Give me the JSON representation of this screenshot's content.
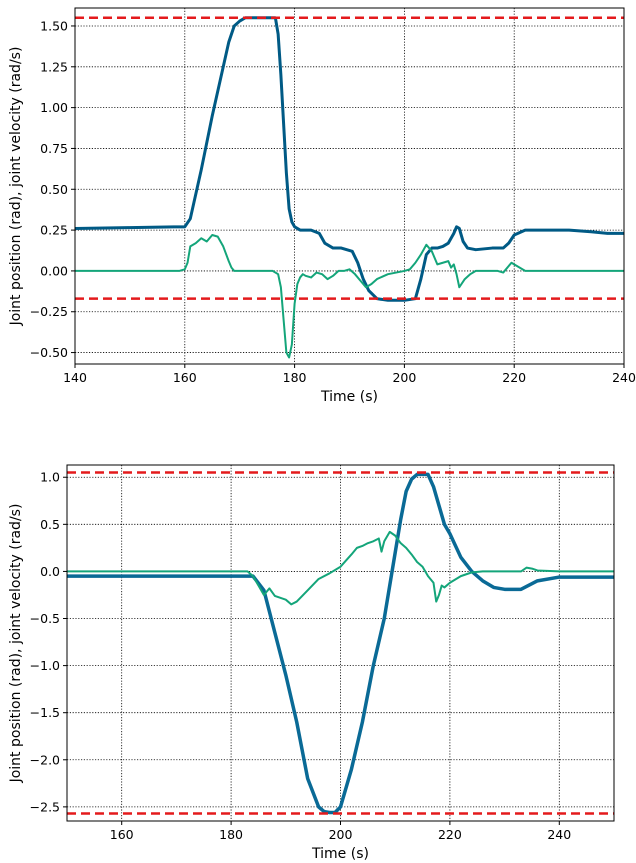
{
  "chart_data": [
    {
      "type": "line",
      "xlabel": "Time (s)",
      "ylabel": "Joint position (rad), joint velocity (rad/s)",
      "xlim": [
        140,
        240
      ],
      "ylim": [
        -0.57,
        1.61
      ],
      "xticks": [
        140,
        160,
        180,
        200,
        220,
        240
      ],
      "xtick_labels": [
        "140",
        "160",
        "180",
        "200",
        "220",
        "240"
      ],
      "yticks": [
        -0.5,
        -0.25,
        0.0,
        0.25,
        0.5,
        0.75,
        1.0,
        1.25,
        1.5
      ],
      "ytick_labels": [
        "−0.50",
        "−0.25",
        "0.00",
        "0.25",
        "0.50",
        "0.75",
        "1.00",
        "1.25",
        "1.50"
      ],
      "grid": true,
      "limits": [
        {
          "y": 1.55,
          "color": "#e41a1c"
        },
        {
          "y": -0.17,
          "color": "#e41a1c"
        }
      ],
      "series": [
        {
          "color": "#005a85",
          "stroke_width": 3,
          "x": [
            140,
            150,
            158,
            160,
            161,
            163,
            165,
            167,
            168,
            169,
            170,
            171,
            173,
            175,
            176.5,
            177,
            177.5,
            178,
            178.5,
            179,
            179.5,
            180,
            181,
            183,
            184.5,
            185.5,
            187,
            188.5,
            190.5,
            191.5,
            192.5,
            193.5,
            195,
            197,
            200,
            202,
            203,
            204,
            205,
            206,
            207,
            208,
            209,
            209.5,
            210,
            210.7,
            211.5,
            213,
            216,
            218,
            219,
            220,
            222,
            230,
            234,
            237,
            240
          ],
          "y": [
            0.26,
            0.265,
            0.27,
            0.27,
            0.32,
            0.62,
            0.95,
            1.25,
            1.4,
            1.5,
            1.53,
            1.55,
            1.55,
            1.55,
            1.55,
            1.45,
            1.2,
            0.9,
            0.6,
            0.38,
            0.3,
            0.27,
            0.25,
            0.25,
            0.23,
            0.17,
            0.14,
            0.14,
            0.12,
            0.05,
            -0.05,
            -0.12,
            -0.17,
            -0.18,
            -0.18,
            -0.17,
            -0.05,
            0.1,
            0.14,
            0.14,
            0.15,
            0.17,
            0.23,
            0.27,
            0.26,
            0.18,
            0.14,
            0.13,
            0.14,
            0.14,
            0.17,
            0.22,
            0.25,
            0.25,
            0.24,
            0.23,
            0.23
          ]
        },
        {
          "color": "#14a57a",
          "stroke_width": 2,
          "x": [
            140,
            150,
            159,
            160,
            160.5,
            161,
            162,
            163,
            164,
            165,
            166,
            167,
            168,
            168.5,
            169,
            170,
            175,
            176,
            177,
            177.5,
            178,
            178.5,
            179,
            179.5,
            180,
            180.5,
            181,
            181.5,
            182,
            183,
            184,
            185,
            186,
            187,
            188,
            189,
            190,
            191,
            192,
            193,
            194,
            195,
            197,
            200,
            201,
            202,
            203,
            204,
            205,
            206,
            207,
            208,
            208.5,
            209,
            209.5,
            210,
            211,
            212,
            213,
            215,
            217,
            218,
            219,
            219.5,
            220,
            221,
            222,
            225,
            240
          ],
          "y": [
            0.0,
            0.0,
            0.0,
            0.01,
            0.05,
            0.15,
            0.17,
            0.2,
            0.18,
            0.22,
            0.21,
            0.15,
            0.06,
            0.02,
            0.0,
            0.0,
            0.0,
            0.0,
            -0.02,
            -0.1,
            -0.3,
            -0.5,
            -0.53,
            -0.45,
            -0.2,
            -0.08,
            -0.04,
            -0.02,
            -0.03,
            -0.04,
            -0.01,
            -0.02,
            -0.05,
            -0.03,
            0.0,
            0.0,
            0.01,
            -0.02,
            -0.06,
            -0.1,
            -0.08,
            -0.05,
            -0.02,
            0.0,
            0.01,
            0.05,
            0.1,
            0.16,
            0.12,
            0.04,
            0.05,
            0.06,
            0.02,
            0.04,
            -0.02,
            -0.1,
            -0.05,
            -0.02,
            0.0,
            0.0,
            0.0,
            -0.01,
            0.03,
            0.05,
            0.04,
            0.02,
            0.0,
            0.0,
            0.0
          ]
        }
      ]
    },
    {
      "type": "line",
      "xlabel": "Time (s)",
      "ylabel": "Joint position (rad), joint velocity (rad/s)",
      "xlim": [
        150,
        250
      ],
      "ylim": [
        -2.65,
        1.13
      ],
      "xticks": [
        160,
        180,
        200,
        220,
        240
      ],
      "xtick_labels": [
        "160",
        "180",
        "200",
        "220",
        "240"
      ],
      "yticks": [
        -2.5,
        -2.0,
        -1.5,
        -1.0,
        -0.5,
        0.0,
        0.5,
        1.0
      ],
      "ytick_labels": [
        "−2.5",
        "−2.0",
        "−1.5",
        "−1.0",
        "−0.5",
        "0.0",
        "0.5",
        "1.0"
      ],
      "grid": true,
      "limits": [
        {
          "y": 1.05,
          "color": "#e41a1c"
        },
        {
          "y": -2.57,
          "color": "#e41a1c"
        }
      ],
      "series": [
        {
          "color": "#0a6a96",
          "stroke_width": 3.5,
          "x": [
            150,
            170,
            184,
            186,
            188,
            190,
            192,
            194,
            196,
            197,
            198,
            199,
            200,
            202,
            204,
            206,
            208,
            210,
            211,
            212,
            213,
            214,
            216,
            217,
            218,
            219,
            220,
            222,
            224,
            226,
            228,
            230,
            233,
            236,
            240,
            250
          ],
          "y": [
            -0.05,
            -0.05,
            -0.05,
            -0.2,
            -0.65,
            -1.1,
            -1.6,
            -2.2,
            -2.5,
            -2.55,
            -2.56,
            -2.56,
            -2.5,
            -2.1,
            -1.6,
            -1.0,
            -0.5,
            0.2,
            0.55,
            0.85,
            0.98,
            1.03,
            1.03,
            0.9,
            0.7,
            0.5,
            0.4,
            0.15,
            0.0,
            -0.1,
            -0.17,
            -0.19,
            -0.19,
            -0.1,
            -0.06,
            -0.06
          ]
        },
        {
          "color": "#14a57a",
          "stroke_width": 2,
          "x": [
            150,
            170,
            183,
            184,
            185,
            186,
            187,
            188,
            189,
            190,
            191,
            192,
            194,
            196,
            198,
            200,
            202,
            203,
            204,
            205,
            206,
            207,
            207.5,
            208,
            209,
            210,
            211,
            212,
            213,
            214,
            215,
            216,
            217,
            217.5,
            218,
            218.5,
            219,
            220,
            222,
            224,
            226,
            230,
            233,
            234,
            235,
            236,
            240,
            250
          ],
          "y": [
            0.0,
            0.0,
            0.0,
            -0.05,
            -0.15,
            -0.25,
            -0.18,
            -0.26,
            -0.28,
            -0.3,
            -0.35,
            -0.32,
            -0.2,
            -0.08,
            -0.02,
            0.05,
            0.18,
            0.25,
            0.27,
            0.3,
            0.32,
            0.35,
            0.21,
            0.32,
            0.42,
            0.38,
            0.3,
            0.25,
            0.18,
            0.1,
            0.05,
            -0.05,
            -0.12,
            -0.32,
            -0.25,
            -0.15,
            -0.17,
            -0.12,
            -0.05,
            -0.01,
            0.0,
            0.0,
            0.0,
            0.04,
            0.03,
            0.01,
            0.0,
            0.0
          ]
        }
      ]
    }
  ]
}
